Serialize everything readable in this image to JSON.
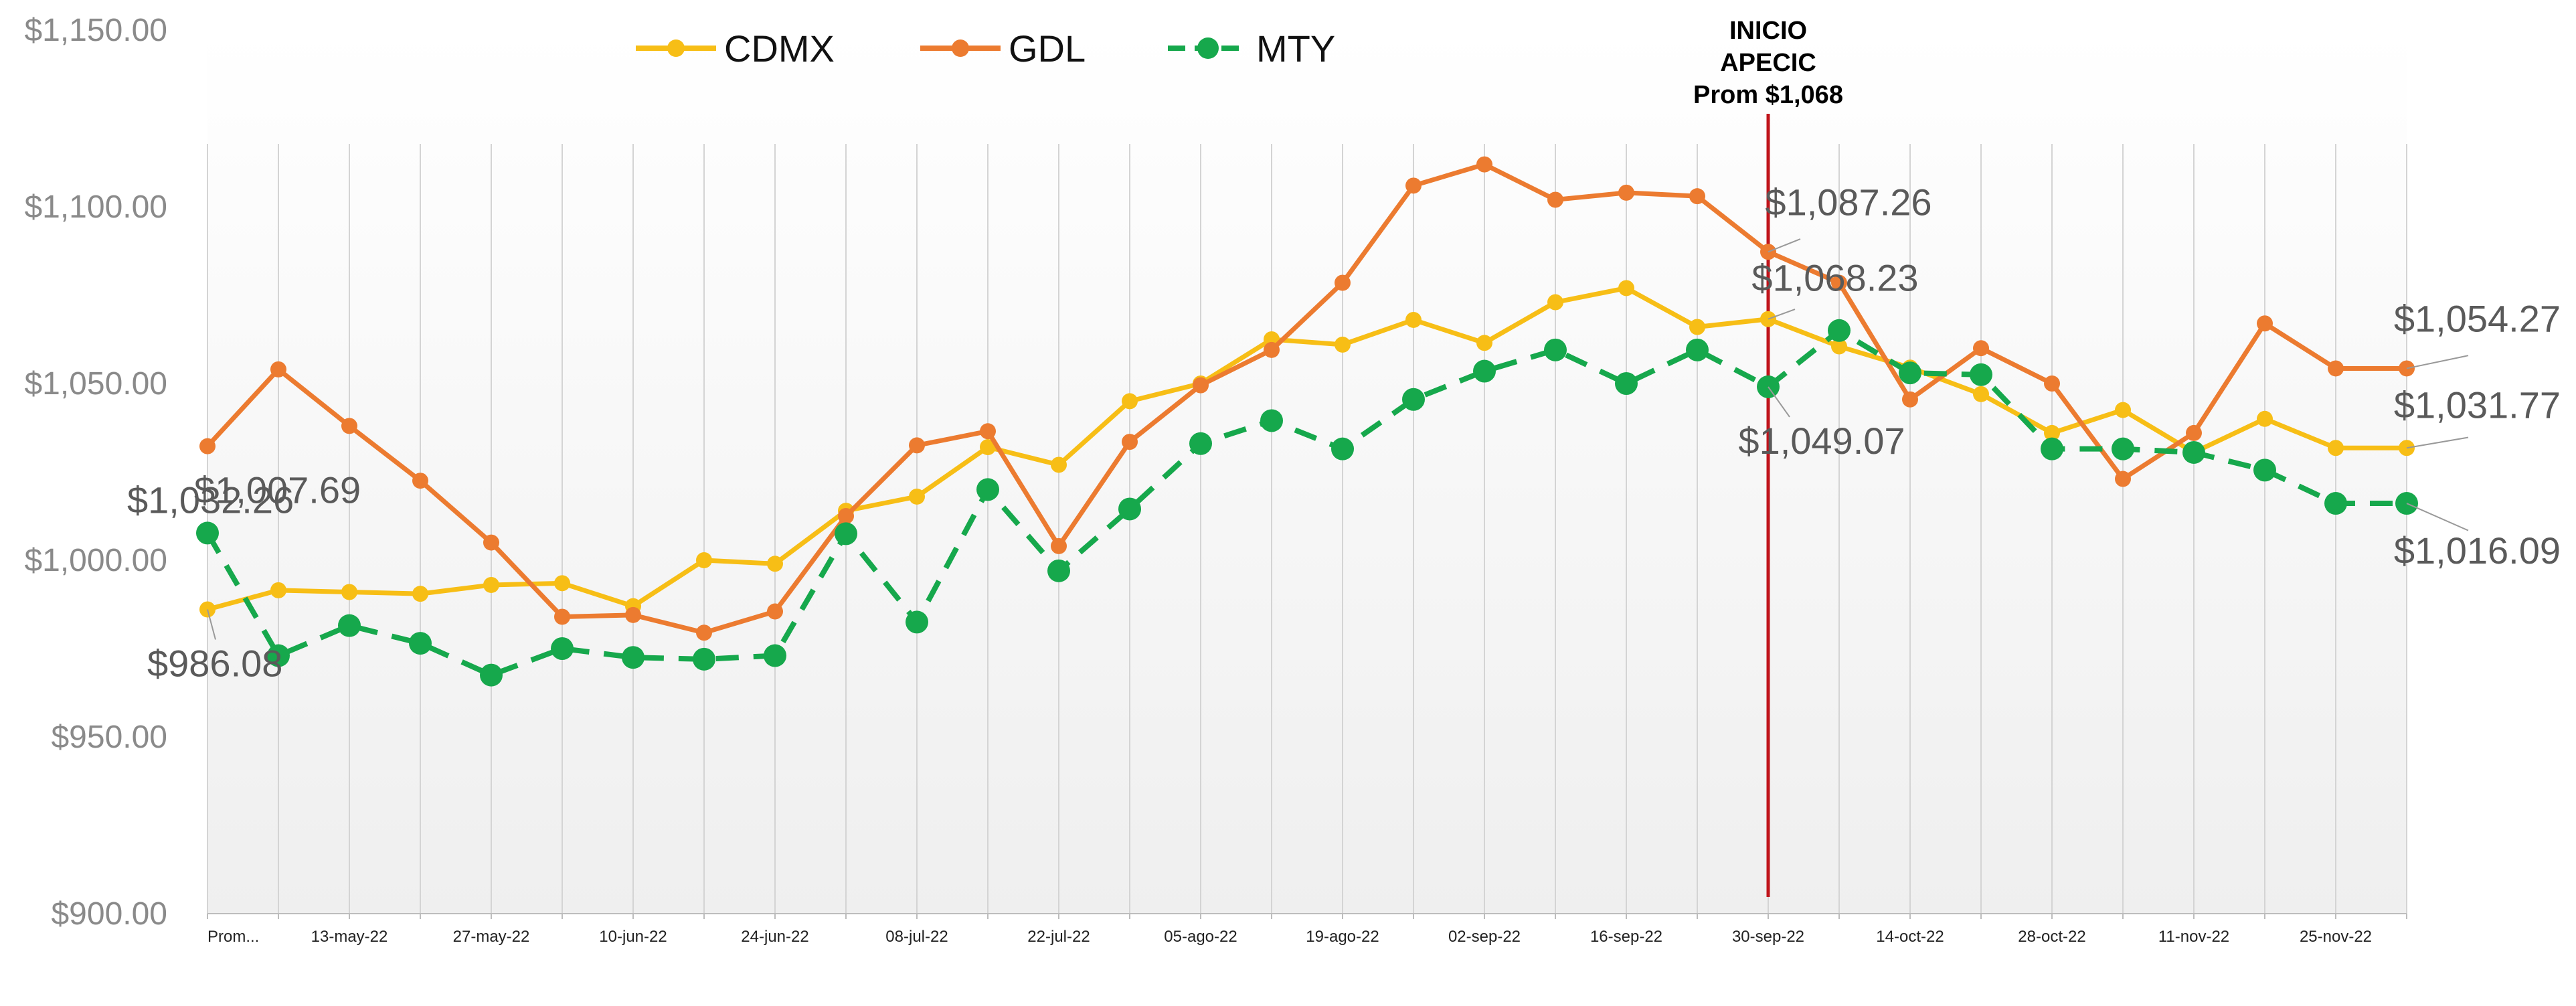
{
  "chart_data": {
    "type": "line",
    "title": "",
    "xlabel": "",
    "ylabel": "",
    "ylim": [
      900,
      1150
    ],
    "yticks": [
      "$900.00",
      "$950.00",
      "$1,000.00",
      "$1,050.00",
      "$1,100.00",
      "$1,150.00"
    ],
    "legend_position": "top",
    "grid": "vertical",
    "categories": [
      "Prom...",
      "",
      "13-may-22",
      "",
      "27-may-22",
      "",
      "10-jun-22",
      "",
      "24-jun-22",
      "",
      "08-jul-22",
      "",
      "22-jul-22",
      "",
      "05-ago-22",
      "",
      "19-ago-22",
      "",
      "02-sep-22",
      "",
      "16-sep-22",
      "",
      "30-sep-22",
      "",
      "14-oct-22",
      "",
      "28-oct-22",
      "",
      "11-nov-22",
      "",
      "25-nov-22",
      ""
    ],
    "series": [
      {
        "name": "CDMX",
        "color": "#F7BE16",
        "style": "solid",
        "values": [
          986.08,
          991.5,
          991.0,
          990.5,
          993.0,
          993.5,
          987.0,
          1000.0,
          999.0,
          1014.0,
          1018.0,
          1032.0,
          1027.0,
          1045.0,
          1050.0,
          1062.5,
          1061.0,
          1068.0,
          1061.5,
          1073.0,
          1077.0,
          1066.0,
          1068.23,
          1060.5,
          1054.5,
          1047.0,
          1036.0,
          1042.5,
          1030.5,
          1040.0,
          1031.77,
          1031.77
        ]
      },
      {
        "name": "GDL",
        "color": "#EC7B30",
        "style": "solid",
        "values": [
          1032.26,
          1054.0,
          1038.0,
          1022.5,
          1005.0,
          984.0,
          984.5,
          979.5,
          985.5,
          1012.5,
          1032.5,
          1036.5,
          1004.0,
          1033.5,
          1049.5,
          1059.5,
          1078.5,
          1106.0,
          1112.0,
          1102.0,
          1104.0,
          1103.0,
          1087.26,
          1078.5,
          1045.5,
          1060.0,
          1050.0,
          1023.0,
          1036.0,
          1067.0,
          1054.27,
          1054.27
        ]
      },
      {
        "name": "MTY",
        "color": "#16A84C",
        "style": "dashed",
        "values": [
          1007.69,
          973.0,
          981.5,
          976.5,
          967.5,
          975.0,
          972.5,
          972.0,
          973.0,
          1007.5,
          982.5,
          1020.0,
          997.0,
          1014.5,
          1033.0,
          1039.5,
          1031.5,
          1045.5,
          1053.5,
          1059.5,
          1050.0,
          1059.5,
          1049.07,
          1065.0,
          1053.0,
          1052.5,
          1031.5,
          1031.5,
          1030.5,
          1025.5,
          1016.09,
          1016.09
        ]
      }
    ],
    "data_labels": [
      {
        "series": "GDL",
        "index": 0,
        "text": "$1,032.26"
      },
      {
        "series": "MTY",
        "index": 0,
        "text": "$1,007.69"
      },
      {
        "series": "CDMX",
        "index": 0,
        "text": "$986.08"
      },
      {
        "series": "GDL",
        "index": 22,
        "text": "$1,087.26"
      },
      {
        "series": "CDMX",
        "index": 22,
        "text": "$1,068.23"
      },
      {
        "series": "MTY",
        "index": 22,
        "text": "$1,049.07"
      },
      {
        "series": "GDL",
        "index": 31,
        "text": "$1,054.27"
      },
      {
        "series": "CDMX",
        "index": 31,
        "text": "$1,031.77"
      },
      {
        "series": "MTY",
        "index": 31,
        "text": "$1,016.09"
      }
    ],
    "annotation": {
      "lines": [
        "INICIO",
        "APECIC",
        "Prom $1,068"
      ],
      "at_index": 22,
      "color": "#C0141B"
    },
    "background_gradient": [
      "#ffffff",
      "#efefef"
    ]
  }
}
